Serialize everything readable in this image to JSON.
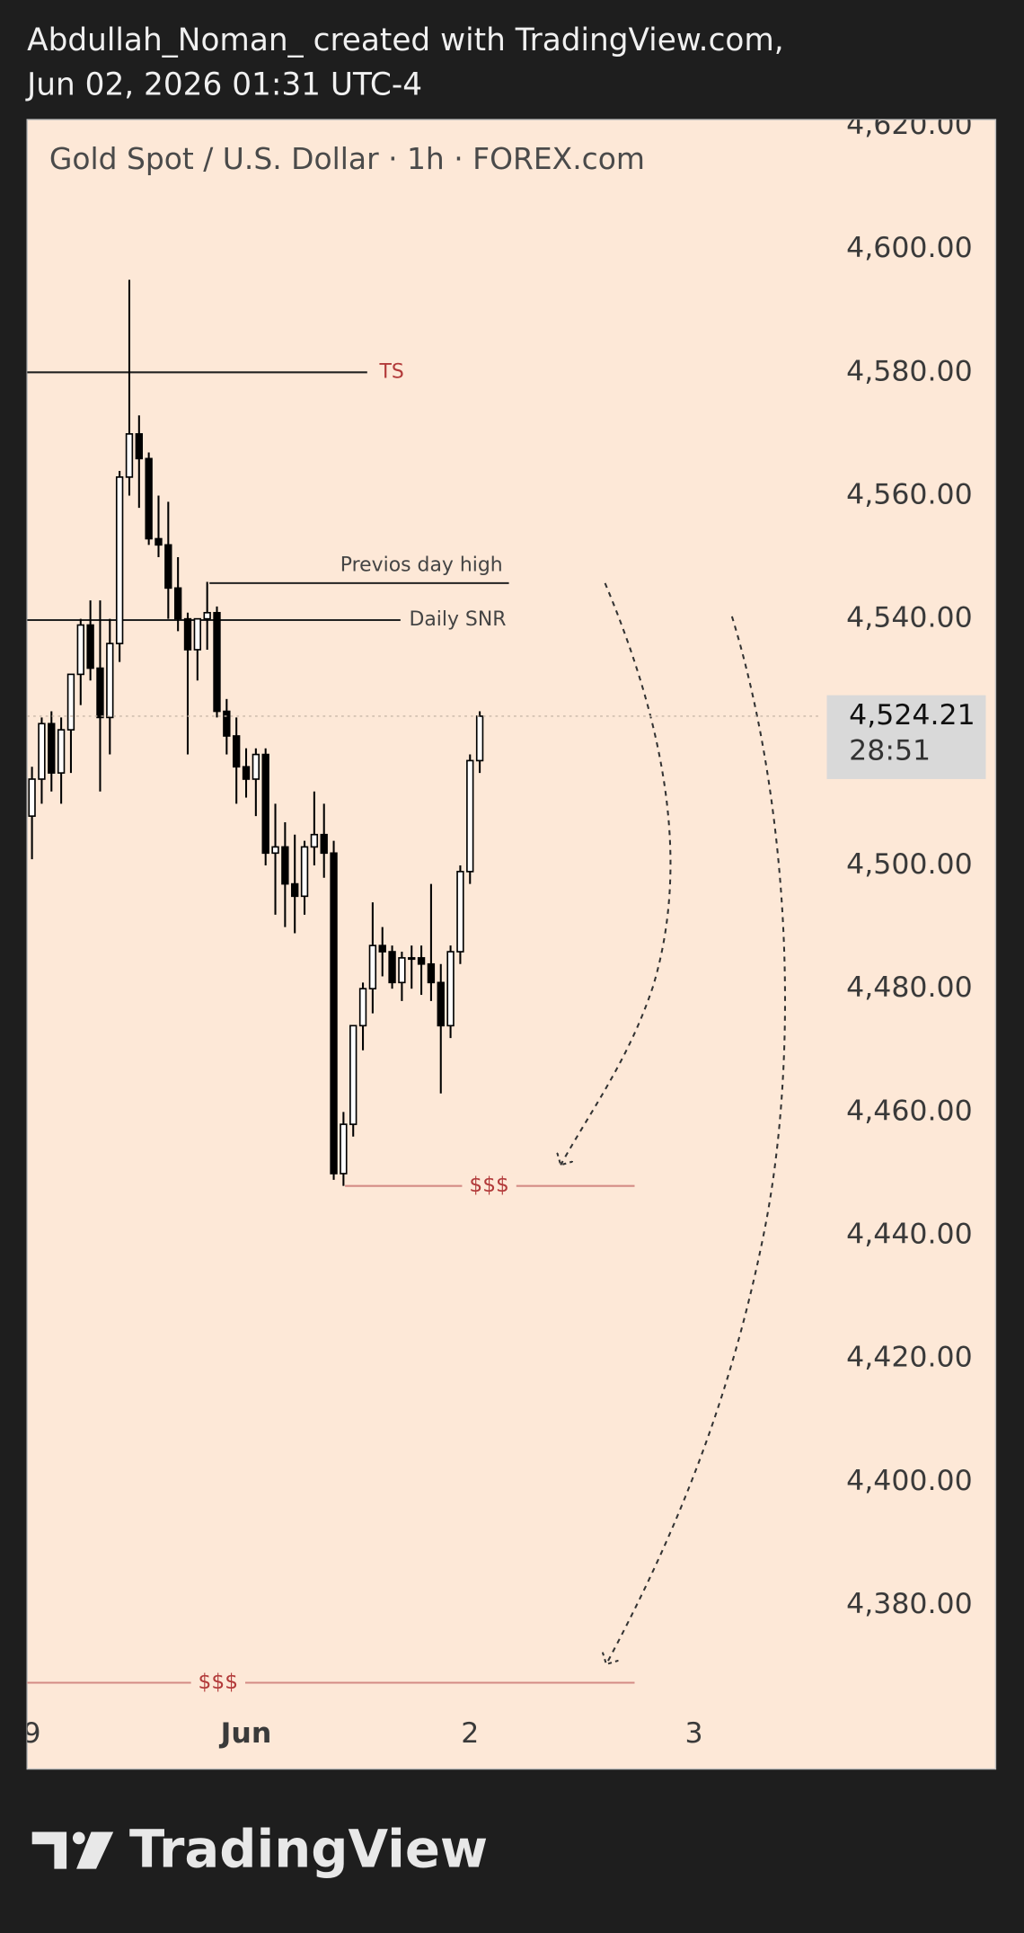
{
  "header": {
    "line1": "Abdullah_Noman_ created with TradingView.com,",
    "line2": "Jun 02, 2026 01:31 UTC-4"
  },
  "chart_data": {
    "type": "candlestick",
    "title": "Gold Spot / U.S. Dollar · 1h · FOREX.com",
    "series": [
      {
        "x": [
          -23,
          -22,
          -21,
          -20,
          -19,
          -18,
          -17,
          -16,
          -15,
          -14,
          -13,
          -12,
          -11,
          -10,
          -9,
          -8,
          -7,
          -6,
          -5,
          -4,
          -3,
          -2,
          -1,
          0,
          1,
          2,
          3,
          4,
          5,
          6,
          7,
          8,
          9,
          10,
          11,
          12,
          13,
          14,
          15,
          16,
          17,
          18,
          19,
          20,
          21,
          22,
          23
        ],
        "open": [
          4508,
          4514,
          4523,
          4515,
          4522,
          4531,
          4539,
          4532,
          4524,
          4536,
          4563,
          4570,
          4566,
          4553,
          4552,
          4545,
          4540,
          4535,
          4540,
          4541,
          4525,
          4521,
          4516,
          4514,
          4518,
          4502,
          4503,
          4497,
          4495,
          4503,
          4505,
          4502,
          4450,
          4458,
          4474,
          4480,
          4487,
          4486,
          4481,
          4485,
          4485,
          4484,
          4481,
          4474,
          4486,
          4499,
          4517
        ],
        "high": [
          4516,
          4524,
          4525,
          4524,
          4531,
          4540,
          4543,
          4543,
          4540,
          4564,
          4595,
          4573,
          4567,
          4560,
          4559,
          4550,
          4541,
          4540,
          4546,
          4542,
          4527,
          4524,
          4519,
          4519,
          4519,
          4510,
          4507,
          4505,
          4504,
          4512,
          4510,
          4504,
          4460,
          4474,
          4481,
          4494,
          4490,
          4487,
          4486,
          4487,
          4487,
          4497,
          4484,
          4487,
          4500,
          4518,
          4525
        ],
        "low": [
          4501,
          4510,
          4512,
          4510,
          4515,
          4526,
          4530,
          4512,
          4518,
          4533,
          4560,
          4558,
          4552,
          4550,
          4540,
          4538,
          4518,
          4530,
          4535,
          4524,
          4518,
          4510,
          4511,
          4508,
          4500,
          4492,
          4490,
          4489,
          4492,
          4500,
          4498,
          4449,
          4448,
          4456,
          4470,
          4476,
          4482,
          4480,
          4478,
          4480,
          4479,
          4478,
          4463,
          4472,
          4484,
          4497,
          4515
        ],
        "close": [
          4514,
          4523,
          4515,
          4522,
          4531,
          4539,
          4532,
          4524,
          4536,
          4563,
          4570,
          4566,
          4553,
          4552,
          4545,
          4540,
          4535,
          4540,
          4541,
          4525,
          4521,
          4516,
          4514,
          4518,
          4502,
          4503,
          4497,
          4495,
          4503,
          4505,
          4502,
          4450,
          4458,
          4474,
          4480,
          4487,
          4486,
          4481,
          4485,
          4485,
          4484,
          4481,
          4474,
          4486,
          4499,
          4517,
          4524.21
        ],
        "up_color": "#ffffff",
        "down_color": "#000000",
        "wick_color": "#000000"
      }
    ],
    "xlim": [
      -23.5,
      76
    ],
    "xticks": [
      {
        "value": -23,
        "label": "9"
      },
      {
        "value": -1,
        "label": "Jun"
      },
      {
        "value": 22,
        "label": "2"
      },
      {
        "value": 45,
        "label": "3"
      }
    ],
    "ylim": [
      4363.4,
      4621
    ],
    "yticks": [
      {
        "value": 4380,
        "label": "4,380.00"
      },
      {
        "value": 4400,
        "label": "4,400.00"
      },
      {
        "value": 4420,
        "label": "4,420.00"
      },
      {
        "value": 4440,
        "label": "4,440.00"
      },
      {
        "value": 4460,
        "label": "4,460.00"
      },
      {
        "value": 4480,
        "label": "4,480.00"
      },
      {
        "value": 4500,
        "label": "4,500.00"
      },
      {
        "value": 4520,
        "label": "4,520.00"
      },
      {
        "value": 4540,
        "label": "4,540.00"
      },
      {
        "value": 4560,
        "label": "4,560.00"
      },
      {
        "value": 4580,
        "label": "4,580.00"
      },
      {
        "value": 4600,
        "label": "4,600.00"
      },
      {
        "value": 4620,
        "label": "4,620.00"
      }
    ],
    "last_price_label": "4,524.21",
    "countdown": "28:51",
    "annotations": [
      {
        "text": "TS",
        "value": 4580,
        "color": "#b23a3a",
        "line_color": "#222222"
      },
      {
        "text": "Previos day high",
        "value": 4545.8,
        "color": "#444444",
        "line_color": "#222222"
      },
      {
        "text": "Daily SNR",
        "value": 4539.8,
        "color": "#444444",
        "line_color": "#222222"
      },
      {
        "text": "$$$",
        "value": 4448,
        "color": "#b23a3a",
        "line_color": "#d48b85"
      },
      {
        "text": "$$$",
        "value": 4367.4,
        "color": "#b23a3a",
        "line_color": "#d48b85"
      }
    ]
  },
  "footer": {
    "brand": "TradingView"
  }
}
